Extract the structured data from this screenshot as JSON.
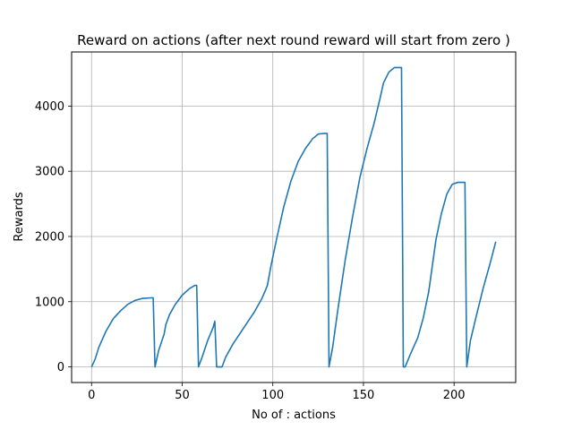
{
  "chart_data": {
    "type": "line",
    "title": "Reward on actions (after next round reward will start from zero )",
    "xlabel": "No of : actions",
    "ylabel": "Rewards",
    "xlim": [
      -11,
      234
    ],
    "ylim": [
      -240,
      4830
    ],
    "xticks": [
      0,
      50,
      100,
      150,
      200
    ],
    "yticks": [
      0,
      1000,
      2000,
      3000,
      4000
    ],
    "xtick_labels": [
      "0",
      "50",
      "100",
      "150",
      "200"
    ],
    "ytick_labels": [
      "0",
      "1000",
      "2000",
      "3000",
      "4000"
    ],
    "grid": true,
    "line_color": "#1f77b4",
    "series": [
      {
        "x": [
          0,
          2,
          4,
          8,
          12,
          16,
          20,
          24,
          28,
          34,
          35,
          37,
          40,
          41,
          43,
          46,
          50,
          54,
          57,
          58,
          59,
          61,
          64,
          67,
          68,
          69,
          71,
          72,
          74,
          78,
          84,
          90,
          94,
          96,
          97,
          99,
          102,
          106,
          110,
          114,
          118,
          122,
          125,
          128,
          130,
          131,
          133,
          136,
          140,
          144,
          148,
          152,
          156,
          159,
          161,
          164,
          167,
          169,
          171,
          172,
          173,
          176,
          180,
          183,
          186,
          188,
          190,
          193,
          196,
          199,
          202,
          204,
          206,
          207,
          209,
          212,
          216,
          220,
          223
        ],
        "y": [
          0,
          120,
          300,
          550,
          740,
          860,
          960,
          1020,
          1050,
          1060,
          0,
          250,
          500,
          650,
          800,
          950,
          1100,
          1200,
          1250,
          1250,
          0,
          150,
          400,
          600,
          700,
          0,
          0,
          0,
          150,
          350,
          600,
          850,
          1050,
          1180,
          1250,
          1550,
          1950,
          2450,
          2850,
          3150,
          3350,
          3500,
          3570,
          3580,
          3580,
          0,
          300,
          900,
          1650,
          2300,
          2900,
          3350,
          3750,
          4100,
          4350,
          4520,
          4590,
          4590,
          4590,
          0,
          0,
          200,
          450,
          750,
          1150,
          1550,
          1950,
          2350,
          2650,
          2800,
          2830,
          2830,
          2830,
          0,
          400,
          750,
          1200,
          1600,
          1920
        ]
      }
    ]
  }
}
